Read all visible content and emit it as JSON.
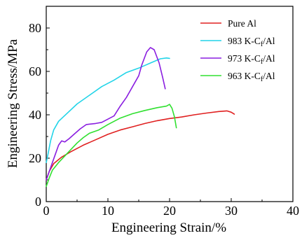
{
  "chart_data": {
    "type": "line",
    "xlabel": "Engineering Strain/%",
    "ylabel": "Engineering Stress/MPa",
    "xlim": [
      0,
      40
    ],
    "ylim": [
      0,
      90
    ],
    "xticks": [
      "0",
      "10",
      "20",
      "30",
      "40"
    ],
    "yticks": [
      "0",
      "20",
      "40",
      "60",
      "80"
    ],
    "grid": false,
    "legend_position": "top-right",
    "series": [
      {
        "name": "Pure Al",
        "legend": {
          "base": "Pure Al",
          "sub": "",
          "tail": ""
        },
        "color": "#e02020",
        "points": [
          [
            0,
            10
          ],
          [
            0.5,
            14
          ],
          [
            1.2,
            17.5
          ],
          [
            2.5,
            20.5
          ],
          [
            4,
            23
          ],
          [
            6,
            26
          ],
          [
            8,
            28.5
          ],
          [
            10,
            31
          ],
          [
            12,
            33
          ],
          [
            14,
            34.5
          ],
          [
            16,
            36
          ],
          [
            18,
            37.3
          ],
          [
            20,
            38.3
          ],
          [
            22,
            39
          ],
          [
            24,
            40
          ],
          [
            26,
            40.8
          ],
          [
            28,
            41.5
          ],
          [
            29.3,
            41.8
          ],
          [
            30,
            41.2
          ],
          [
            30.5,
            40.3
          ]
        ]
      },
      {
        "name": "983 K-Cf/Al",
        "legend": {
          "base": "983 K-C",
          "sub": "f",
          "tail": "/Al"
        },
        "color": "#22d4e8",
        "points": [
          [
            0,
            18
          ],
          [
            0.3,
            22
          ],
          [
            0.7,
            28
          ],
          [
            1.2,
            33
          ],
          [
            2,
            37
          ],
          [
            3.5,
            41
          ],
          [
            5,
            45
          ],
          [
            7,
            49
          ],
          [
            9,
            53
          ],
          [
            11,
            56
          ],
          [
            13,
            59.5
          ],
          [
            15,
            61.5
          ],
          [
            17,
            64
          ],
          [
            18.5,
            65.8
          ],
          [
            19.5,
            66.2
          ],
          [
            20,
            66
          ]
        ]
      },
      {
        "name": "973 K-Cf/Al",
        "legend": {
          "base": "973 K-C",
          "sub": "f",
          "tail": "/Al"
        },
        "color": "#8a1ee0",
        "points": [
          [
            0,
            10
          ],
          [
            0.5,
            14
          ],
          [
            1,
            18
          ],
          [
            1.5,
            22
          ],
          [
            2,
            26
          ],
          [
            2.5,
            28
          ],
          [
            3,
            27.5
          ],
          [
            3.7,
            29
          ],
          [
            4.5,
            31
          ],
          [
            5.5,
            33.5
          ],
          [
            6.5,
            35.5
          ],
          [
            8,
            36
          ],
          [
            9,
            36.5
          ],
          [
            10,
            38
          ],
          [
            11,
            39.5
          ],
          [
            12,
            44
          ],
          [
            13,
            48
          ],
          [
            14,
            53
          ],
          [
            15,
            58
          ],
          [
            15.5,
            63
          ],
          [
            16.3,
            69
          ],
          [
            16.9,
            71
          ],
          [
            17.5,
            70
          ],
          [
            18.3,
            64
          ],
          [
            18.9,
            57
          ],
          [
            19.3,
            52
          ]
        ]
      },
      {
        "name": "963 K-Cf/Al",
        "legend": {
          "base": "963 K-C",
          "sub": "f",
          "tail": "/Al"
        },
        "color": "#30e030",
        "points": [
          [
            0,
            7
          ],
          [
            0.5,
            11
          ],
          [
            1,
            14.5
          ],
          [
            2,
            18
          ],
          [
            3,
            21
          ],
          [
            4,
            24
          ],
          [
            5,
            27
          ],
          [
            6,
            29.5
          ],
          [
            7,
            31.5
          ],
          [
            8.5,
            33
          ],
          [
            10,
            35.5
          ],
          [
            12,
            38.5
          ],
          [
            14,
            40.5
          ],
          [
            16,
            42
          ],
          [
            18,
            43.3
          ],
          [
            19.5,
            44
          ],
          [
            20,
            44.8
          ],
          [
            20.4,
            43
          ],
          [
            20.8,
            39
          ],
          [
            21.1,
            34
          ]
        ]
      }
    ]
  }
}
